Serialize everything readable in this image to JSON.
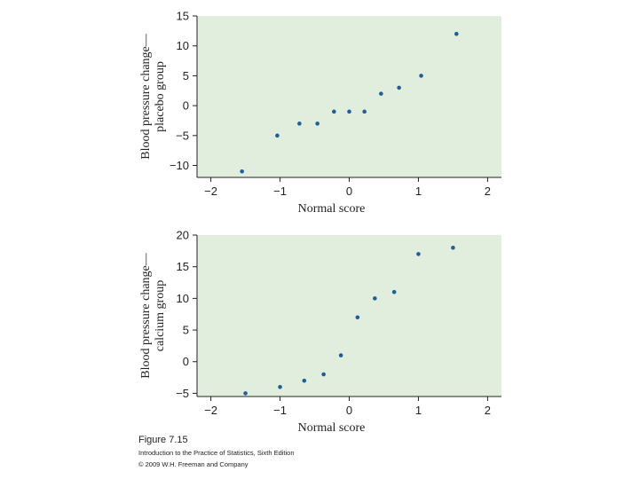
{
  "chart_data": [
    {
      "type": "scatter",
      "title": "",
      "xlabel": "Normal score",
      "ylabel_lines": [
        "Blood pressure change—",
        "placebo group"
      ],
      "xlim": [
        -2.2,
        2.2
      ],
      "ylim": [
        -12,
        15
      ],
      "xticks": [
        -2,
        -1,
        0,
        1,
        2
      ],
      "yticks": [
        -10,
        -5,
        0,
        5,
        10,
        15
      ],
      "grid": false,
      "background_color": "#e2eedd",
      "point_color": "#1f5f94",
      "points": [
        {
          "x": -1.55,
          "y": -11
        },
        {
          "x": -1.04,
          "y": -5
        },
        {
          "x": -0.72,
          "y": -3
        },
        {
          "x": -0.46,
          "y": -3
        },
        {
          "x": -0.22,
          "y": -1
        },
        {
          "x": 0.0,
          "y": -1
        },
        {
          "x": 0.22,
          "y": -1
        },
        {
          "x": 0.46,
          "y": 2
        },
        {
          "x": 0.72,
          "y": 3
        },
        {
          "x": 1.04,
          "y": 5
        },
        {
          "x": 1.55,
          "y": 12
        }
      ]
    },
    {
      "type": "scatter",
      "title": "",
      "xlabel": "Normal score",
      "ylabel_lines": [
        "Blood pressure change—",
        "calcium group"
      ],
      "xlim": [
        -2.2,
        2.2
      ],
      "ylim": [
        -5.5,
        20
      ],
      "xticks": [
        -2,
        -1,
        0,
        1,
        2
      ],
      "yticks": [
        -5,
        0,
        5,
        10,
        15,
        20
      ],
      "grid": false,
      "background_color": "#e2eedd",
      "point_color": "#1f5f94",
      "points": [
        {
          "x": -1.5,
          "y": -5
        },
        {
          "x": -1.0,
          "y": -4
        },
        {
          "x": -0.65,
          "y": -3
        },
        {
          "x": -0.37,
          "y": -2
        },
        {
          "x": -0.12,
          "y": 1
        },
        {
          "x": 0.12,
          "y": 7
        },
        {
          "x": 0.37,
          "y": 10
        },
        {
          "x": 0.65,
          "y": 11
        },
        {
          "x": 1.0,
          "y": 17
        },
        {
          "x": 1.5,
          "y": 18
        }
      ]
    }
  ],
  "caption": {
    "figure": "Figure 7.15",
    "book": "Introduction to the Practice of Statistics, Sixth Edition",
    "copyright": "© 2009 W.H. Freeman and Company"
  }
}
